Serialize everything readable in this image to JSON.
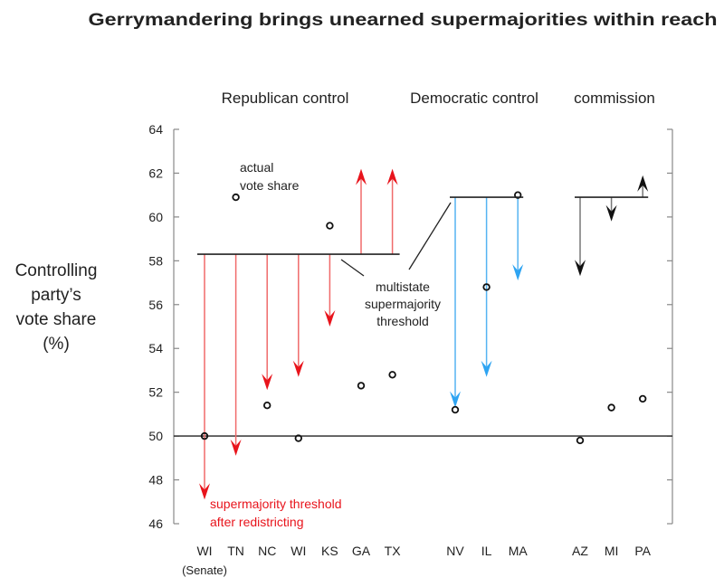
{
  "chart_data": {
    "type": "scatter",
    "title": "Gerrymandering brings unearned supermajorities within reach",
    "ylabel": [
      "Controlling",
      "party’s",
      "vote share",
      "(%)"
    ],
    "ylim": [
      46,
      64
    ],
    "yticks": [
      46,
      48,
      50,
      52,
      54,
      56,
      58,
      60,
      62,
      64
    ],
    "reference_line": 50,
    "grid": false,
    "colors": {
      "republican": "#e8141c",
      "democratic": "#2ea4f2",
      "commission": "#111111",
      "points": "#111111"
    },
    "groups": [
      {
        "label": "Republican control",
        "color_key": "republican",
        "multistate_threshold": 58.3,
        "states": [
          {
            "label": "WI",
            "sublabel": "(Senate)",
            "actual_vote_share": 50.0,
            "threshold_after_redistricting": 47.1
          },
          {
            "label": "TN",
            "actual_vote_share": 60.9,
            "threshold_after_redistricting": 49.1
          },
          {
            "label": "NC",
            "actual_vote_share": 51.4,
            "threshold_after_redistricting": 52.1
          },
          {
            "label": "WI",
            "actual_vote_share": 49.9,
            "threshold_after_redistricting": 52.7
          },
          {
            "label": "KS",
            "actual_vote_share": 59.6,
            "threshold_after_redistricting": 55.0
          },
          {
            "label": "GA",
            "actual_vote_share": 52.3,
            "threshold_after_redistricting": 62.2
          },
          {
            "label": "TX",
            "actual_vote_share": 52.8,
            "threshold_after_redistricting": 62.2
          }
        ]
      },
      {
        "label": "Democratic control",
        "color_key": "democratic",
        "multistate_threshold": 60.9,
        "states": [
          {
            "label": "NV",
            "actual_vote_share": 51.2,
            "threshold_after_redistricting": 51.3
          },
          {
            "label": "IL",
            "actual_vote_share": 56.8,
            "threshold_after_redistricting": 52.7
          },
          {
            "label": "MA",
            "actual_vote_share": 61.0,
            "threshold_after_redistricting": 57.1
          }
        ]
      },
      {
        "label": "commission",
        "color_key": "commission",
        "multistate_threshold": 60.9,
        "states": [
          {
            "label": "AZ",
            "actual_vote_share": 49.8,
            "threshold_after_redistricting": 57.3
          },
          {
            "label": "MI",
            "actual_vote_share": 51.3,
            "threshold_after_redistricting": 59.8
          },
          {
            "label": "PA",
            "actual_vote_share": 51.7,
            "threshold_after_redistricting": 61.9
          }
        ]
      }
    ],
    "annotations": {
      "actual": [
        "actual",
        "vote share"
      ],
      "multistate": [
        "multistate",
        "supermajority",
        "threshold"
      ],
      "after": [
        "supermajority threshold",
        "after redistricting"
      ]
    }
  }
}
